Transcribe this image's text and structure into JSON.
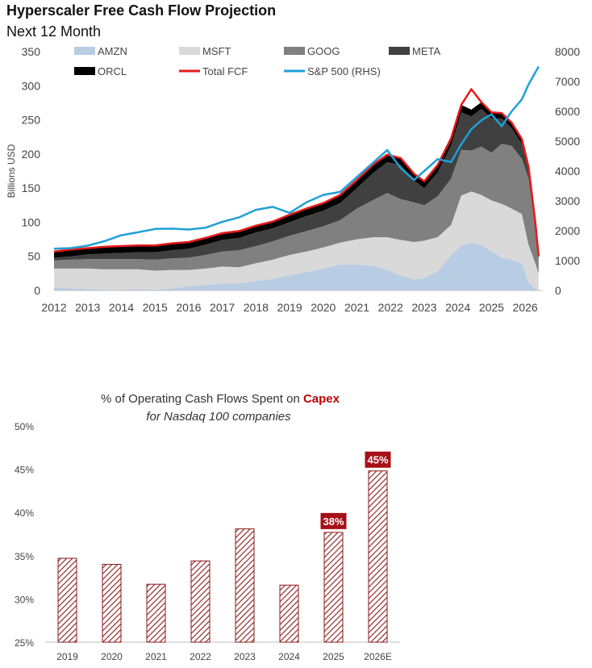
{
  "header": {
    "title": "Hyperscaler Free Cash Flow Projection",
    "subtitle": "Next 12 Month"
  },
  "chart_data": [
    {
      "type": "area",
      "ylabel": "Billions USD",
      "ylim": [
        0,
        350
      ],
      "y2lim": [
        0,
        8000
      ],
      "yticks": [
        0,
        50,
        100,
        150,
        200,
        250,
        300,
        350
      ],
      "y2ticks": [
        0,
        1000,
        2000,
        3000,
        4000,
        5000,
        6000,
        7000,
        8000
      ],
      "xticks": [
        "2012",
        "2013",
        "2014",
        "2015",
        "2016",
        "2017",
        "2018",
        "2019",
        "2020",
        "2021",
        "2022",
        "2023",
        "2024",
        "2025",
        "2026"
      ],
      "legend": [
        "AMZN",
        "MSFT",
        "GOOG",
        "META",
        "ORCL",
        "Total FCF",
        "S&P 500 (RHS)"
      ],
      "colors": {
        "AMZN": "#b8cce4",
        "MSFT": "#d9d9d9",
        "GOOG": "#808080",
        "META": "#404040",
        "ORCL": "#000000",
        "Total FCF": "#e41a1c",
        "S&P 500 (RHS)": "#1fa0d8"
      },
      "x": [
        2012.0,
        2012.5,
        2013.0,
        2013.5,
        2014.0,
        2014.5,
        2015.0,
        2015.5,
        2016.0,
        2016.5,
        2017.0,
        2017.5,
        2018.0,
        2018.5,
        2019.0,
        2019.5,
        2020.0,
        2020.5,
        2021.0,
        2021.5,
        2021.9,
        2022.3,
        2022.7,
        2023.0,
        2023.4,
        2023.8,
        2024.1,
        2024.4,
        2024.7,
        2025.0,
        2025.3,
        2025.6,
        2025.9,
        2026.1,
        2026.3,
        2026.4
      ],
      "series": [
        {
          "name": "AMZN",
          "values": [
            4,
            3,
            2,
            1,
            1,
            2,
            1,
            3,
            6,
            8,
            10,
            10,
            14,
            17,
            22,
            27,
            32,
            38,
            38,
            36,
            30,
            22,
            16,
            18,
            28,
            52,
            66,
            70,
            66,
            58,
            48,
            45,
            40,
            12,
            2,
            0
          ]
        },
        {
          "name": "MSFT",
          "values": [
            28,
            29,
            30,
            30,
            30,
            29,
            28,
            27,
            24,
            24,
            25,
            24,
            26,
            28,
            30,
            30,
            31,
            32,
            37,
            42,
            48,
            52,
            55,
            55,
            50,
            44,
            73,
            75,
            74,
            74,
            79,
            75,
            72,
            55,
            38,
            25
          ]
        },
        {
          "name": "GOOG",
          "values": [
            12,
            13,
            14,
            15,
            15,
            15,
            16,
            17,
            18,
            20,
            22,
            25,
            25,
            27,
            28,
            30,
            31,
            33,
            45,
            55,
            65,
            60,
            58,
            52,
            60,
            68,
            67,
            60,
            71,
            70,
            88,
            92,
            81,
            97,
            50,
            20
          ]
        },
        {
          "name": "META",
          "values": [
            4,
            5,
            7,
            8,
            9,
            10,
            11,
            12,
            13,
            15,
            17,
            18,
            20,
            19,
            20,
            22,
            23,
            25,
            30,
            40,
            45,
            50,
            32,
            25,
            35,
            48,
            55,
            50,
            55,
            50,
            37,
            26,
            22,
            10,
            5,
            2
          ]
        },
        {
          "name": "ORCL",
          "values": [
            8,
            9,
            9,
            10,
            10,
            10,
            10,
            10,
            10,
            10,
            10,
            10,
            10,
            10,
            11,
            11,
            11,
            12,
            12,
            12,
            11,
            10,
            10,
            10,
            11,
            11,
            11,
            10,
            10,
            9,
            8,
            8,
            7,
            7,
            5,
            3
          ]
        },
        {
          "name": "Total FCF",
          "values": [
            57,
            60,
            62,
            64,
            65,
            66,
            66,
            69,
            71,
            77,
            84,
            87,
            95,
            101,
            111,
            120,
            128,
            140,
            162,
            185,
            199,
            194,
            171,
            160,
            184,
            223,
            272,
            295,
            276,
            261,
            260,
            246,
            222,
            181,
            100,
            50
          ]
        },
        {
          "name": "S&P 500 (RHS)",
          "axis": "right",
          "values": [
            1400,
            1420,
            1500,
            1650,
            1850,
            1950,
            2060,
            2070,
            2040,
            2100,
            2300,
            2450,
            2700,
            2800,
            2600,
            2950,
            3200,
            3300,
            3800,
            4300,
            4700,
            4100,
            3700,
            4000,
            4400,
            4300,
            4900,
            5400,
            5700,
            5900,
            5500,
            6000,
            6400,
            6900,
            7300,
            7500
          ]
        }
      ]
    },
    {
      "type": "bar",
      "title_parts": [
        "% of Operating Cash Flows Spent on ",
        "Capex"
      ],
      "subtitle": "for Nasdaq 100 companies",
      "categories": [
        "2019",
        "2020",
        "2021",
        "2022",
        "2023",
        "2024",
        "2025",
        "2026E"
      ],
      "values": [
        34.7,
        34.0,
        31.7,
        34.4,
        38.1,
        31.6,
        37.7,
        44.8
      ],
      "data_labels": [
        "",
        "",
        "",
        "",
        "",
        "",
        "38%",
        "45%"
      ],
      "ylim": [
        25,
        50
      ],
      "yticks": [
        "25%",
        "30%",
        "35%",
        "40%",
        "45%",
        "50%"
      ],
      "colors": {
        "bar": "#8b1a1a",
        "label_bg": "#a50f15",
        "accent": "#c00000"
      }
    }
  ]
}
